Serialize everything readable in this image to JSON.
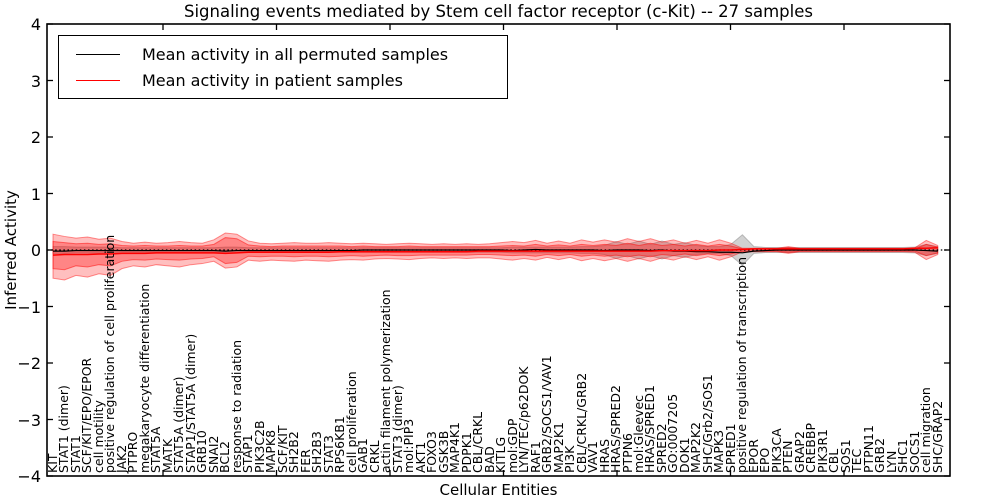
{
  "chart_data": {
    "type": "line",
    "title": "Signaling events mediated by Stem cell factor receptor (c-Kit) -- 27 samples",
    "xlabel": "Cellular Entities",
    "ylabel": "Inferred Activity",
    "ylim": [
      -4,
      4
    ],
    "yticks": [
      4,
      3,
      2,
      1,
      0,
      -1,
      -2,
      -3,
      -4
    ],
    "ytick_labels": [
      "4",
      "3",
      "2",
      "1",
      "0",
      "−1",
      "−2",
      "−3",
      "−4"
    ],
    "grid": false,
    "zero_line": 0,
    "categories": [
      "KIT",
      "STAT1 (dimer)",
      "STAT1",
      "SCF/KIT/EPO/EPOR",
      "cell motility",
      "positive regulation of cell proliferation",
      "JAK2",
      "PTPRO",
      "megakaryocyte differentiation",
      "STAT5A",
      "MATK",
      "STAT5A (dimer)",
      "STAP1/STAT5A (dimer)",
      "GRB10",
      "SNAI2",
      "BCL2",
      "response to radiation",
      "STAP1",
      "PIK3C2B",
      "MAPK8",
      "SCF/KIT",
      "SH2B2",
      "FER",
      "SH2B3",
      "STAT3",
      "RPS6KB1",
      "cell proliferation",
      "GAB1",
      "CRKL",
      "actin filament polymerization",
      "STAT3 (dimer)",
      "mol:PIP3",
      "AKT1",
      "FOXO3",
      "GSK3B",
      "MAP4K1",
      "PDPK1",
      "CBL/CRKL",
      "BAD",
      "KITLG",
      "mol:GDP",
      "LYN/TEC/p62DOK",
      "RAF1",
      "GRB2/SOCS1/VAV1",
      "MAP2K1",
      "PI3K",
      "CBL/CRKL/GRB2",
      "VAV1",
      "HRAS",
      "HRAS/SPRED2",
      "PTPN6",
      "mol:Gleevec",
      "HRAS/SPRED1",
      "SPRED2",
      "GO:0007205",
      "DOK1",
      "MAP2K2",
      "SHC/Grb2/SOS1",
      "MAPK3",
      "SPRED1",
      "positive regulation of transcription",
      "EPOR",
      "EPO",
      "PIK3CA",
      "PTEN",
      "GRAP2",
      "CREBBP",
      "PIK3R1",
      "CBL",
      "SOS1",
      "TEC",
      "PTPN11",
      "GRB2",
      "LYN",
      "SHC1",
      "SOCS1",
      "cell migration",
      "SHC/GRAP2"
    ],
    "legend": {
      "position": "upper left",
      "entries": [
        {
          "label": "Mean activity in all permuted samples",
          "color": "#000000"
        },
        {
          "label": "Mean activity in patient samples",
          "color": "#ff0000"
        }
      ]
    },
    "series": [
      {
        "name": "Mean activity in all permuted samples",
        "color": "#000000",
        "width": 1.2,
        "values": [
          -0.02,
          -0.02,
          -0.01,
          -0.01,
          -0.01,
          -0.01,
          -0.01,
          -0.01,
          -0.01,
          -0.01,
          -0.01,
          -0.01,
          -0.01,
          -0.01,
          -0.01,
          -0.02,
          -0.01,
          -0.01,
          -0.01,
          -0.01,
          -0.01,
          -0.01,
          -0.01,
          -0.01,
          -0.01,
          -0.01,
          -0.01,
          0.0,
          0.0,
          0.0,
          0.0,
          0.0,
          0.0,
          0.0,
          0.0,
          0.0,
          0.0,
          0.0,
          0.0,
          0.0,
          -0.01,
          0.0,
          0.01,
          0.0,
          0.0,
          0.0,
          0.0,
          0.0,
          -0.01,
          0.0,
          0.0,
          0.0,
          -0.01,
          0.0,
          -0.02,
          -0.02,
          -0.03,
          -0.03,
          -0.04,
          -0.04,
          -0.05,
          -0.02,
          -0.01,
          0.0,
          0.0,
          0.0,
          0.0,
          0.0,
          0.0,
          0.0,
          0.0,
          0.0,
          0.0,
          0.0,
          0.0,
          0.0,
          -0.01,
          -0.02
        ]
      },
      {
        "name": "Mean activity in patient samples",
        "color": "#ff0000",
        "width": 1.5,
        "values": [
          -0.09,
          -0.08,
          -0.08,
          -0.08,
          -0.07,
          -0.07,
          -0.06,
          -0.06,
          -0.06,
          -0.05,
          -0.05,
          -0.05,
          -0.05,
          -0.05,
          -0.05,
          -0.06,
          -0.05,
          -0.04,
          -0.04,
          -0.04,
          -0.04,
          -0.04,
          -0.04,
          -0.04,
          -0.04,
          -0.03,
          -0.03,
          -0.03,
          -0.03,
          -0.03,
          -0.03,
          -0.03,
          -0.03,
          -0.03,
          -0.03,
          -0.03,
          -0.03,
          -0.02,
          -0.02,
          -0.02,
          -0.02,
          -0.02,
          -0.02,
          -0.02,
          -0.02,
          -0.02,
          -0.02,
          -0.02,
          -0.02,
          -0.02,
          -0.02,
          -0.02,
          -0.02,
          -0.01,
          -0.01,
          -0.01,
          -0.01,
          -0.01,
          0.0,
          0.0,
          0.01,
          0.02,
          0.02,
          0.02,
          0.02,
          0.02,
          0.02,
          0.02,
          0.02,
          0.02,
          0.02,
          0.02,
          0.02,
          0.02,
          0.02,
          0.03,
          0.03,
          0.04
        ]
      }
    ],
    "bands": [
      {
        "name": "permuted-range",
        "color": "#999999",
        "opacity": 0.45,
        "top": [
          0.06,
          0.06,
          0.05,
          0.05,
          0.05,
          0.05,
          0.04,
          0.04,
          0.04,
          0.04,
          0.04,
          0.04,
          0.04,
          0.04,
          0.04,
          0.05,
          0.05,
          0.04,
          0.04,
          0.04,
          0.04,
          0.04,
          0.04,
          0.04,
          0.04,
          0.04,
          0.04,
          0.04,
          0.04,
          0.04,
          0.04,
          0.04,
          0.04,
          0.04,
          0.04,
          0.04,
          0.04,
          0.04,
          0.04,
          0.04,
          0.05,
          0.05,
          0.05,
          0.05,
          0.05,
          0.05,
          0.06,
          0.06,
          0.08,
          0.15,
          0.1,
          0.16,
          0.1,
          0.16,
          0.1,
          0.13,
          0.08,
          0.06,
          0.06,
          0.1,
          0.27,
          0.06,
          0.045,
          0.045,
          0.045,
          0.045,
          0.045,
          0.045,
          0.045,
          0.045,
          0.045,
          0.045,
          0.045,
          0.045,
          0.045,
          0.05,
          0.1,
          0.06
        ],
        "bottom": [
          -0.06,
          -0.06,
          -0.05,
          -0.05,
          -0.05,
          -0.05,
          -0.04,
          -0.04,
          -0.04,
          -0.04,
          -0.04,
          -0.04,
          -0.04,
          -0.04,
          -0.04,
          -0.05,
          -0.05,
          -0.04,
          -0.04,
          -0.04,
          -0.04,
          -0.04,
          -0.04,
          -0.04,
          -0.04,
          -0.04,
          -0.04,
          -0.04,
          -0.04,
          -0.04,
          -0.04,
          -0.04,
          -0.04,
          -0.04,
          -0.04,
          -0.04,
          -0.04,
          -0.04,
          -0.04,
          -0.04,
          -0.05,
          -0.05,
          -0.05,
          -0.05,
          -0.05,
          -0.05,
          -0.06,
          -0.06,
          -0.08,
          -0.15,
          -0.1,
          -0.16,
          -0.1,
          -0.16,
          -0.1,
          -0.13,
          -0.08,
          -0.06,
          -0.06,
          -0.1,
          -0.27,
          -0.06,
          -0.045,
          -0.045,
          -0.045,
          -0.045,
          -0.045,
          -0.045,
          -0.045,
          -0.045,
          -0.045,
          -0.045,
          -0.045,
          -0.045,
          -0.045,
          -0.05,
          -0.1,
          -0.06
        ]
      },
      {
        "name": "patient-range-outer",
        "color": "#ff0000",
        "opacity": 0.25,
        "top": [
          0.28,
          0.24,
          0.21,
          0.23,
          0.19,
          0.21,
          0.15,
          0.12,
          0.14,
          0.12,
          0.13,
          0.15,
          0.13,
          0.12,
          0.18,
          0.3,
          0.28,
          0.16,
          0.12,
          0.11,
          0.12,
          0.13,
          0.12,
          0.12,
          0.13,
          0.12,
          0.11,
          0.12,
          0.11,
          0.1,
          0.11,
          0.12,
          0.11,
          0.1,
          0.11,
          0.1,
          0.11,
          0.1,
          0.11,
          0.13,
          0.15,
          0.13,
          0.17,
          0.12,
          0.16,
          0.12,
          0.18,
          0.14,
          0.18,
          0.14,
          0.2,
          0.15,
          0.2,
          0.14,
          0.18,
          0.12,
          0.17,
          0.12,
          0.18,
          0.12,
          0.03,
          0.03,
          0.03,
          0.03,
          0.06,
          0.03,
          0.03,
          0.03,
          0.03,
          0.03,
          0.03,
          0.03,
          0.03,
          0.03,
          0.03,
          0.04,
          0.17,
          0.08
        ],
        "bottom": [
          -0.5,
          -0.53,
          -0.45,
          -0.48,
          -0.42,
          -0.45,
          -0.33,
          -0.28,
          -0.3,
          -0.26,
          -0.28,
          -0.3,
          -0.26,
          -0.24,
          -0.2,
          -0.32,
          -0.3,
          -0.18,
          -0.2,
          -0.18,
          -0.19,
          -0.2,
          -0.18,
          -0.19,
          -0.2,
          -0.18,
          -0.17,
          -0.18,
          -0.16,
          -0.15,
          -0.16,
          -0.17,
          -0.15,
          -0.14,
          -0.15,
          -0.14,
          -0.15,
          -0.14,
          -0.14,
          -0.16,
          -0.18,
          -0.15,
          -0.18,
          -0.13,
          -0.17,
          -0.13,
          -0.19,
          -0.15,
          -0.19,
          -0.15,
          -0.2,
          -0.15,
          -0.2,
          -0.14,
          -0.18,
          -0.12,
          -0.17,
          -0.12,
          -0.18,
          -0.12,
          -0.03,
          -0.03,
          -0.03,
          -0.03,
          -0.06,
          -0.03,
          -0.03,
          -0.03,
          -0.03,
          -0.03,
          -0.03,
          -0.03,
          -0.03,
          -0.03,
          -0.03,
          -0.04,
          -0.17,
          -0.08
        ]
      },
      {
        "name": "patient-range-inner",
        "color": "#ff0000",
        "opacity": 0.3,
        "top": [
          0.15,
          0.13,
          0.11,
          0.12,
          0.1,
          0.11,
          0.08,
          0.07,
          0.08,
          0.07,
          0.07,
          0.08,
          0.07,
          0.07,
          0.1,
          0.22,
          0.2,
          0.09,
          0.07,
          0.06,
          0.07,
          0.07,
          0.07,
          0.07,
          0.07,
          0.07,
          0.06,
          0.07,
          0.06,
          0.06,
          0.06,
          0.07,
          0.06,
          0.06,
          0.06,
          0.06,
          0.06,
          0.06,
          0.06,
          0.07,
          0.08,
          0.07,
          0.1,
          0.07,
          0.09,
          0.07,
          0.1,
          0.08,
          0.1,
          0.08,
          0.12,
          0.08,
          0.12,
          0.08,
          0.1,
          0.07,
          0.1,
          0.07,
          0.1,
          0.07,
          0.02,
          0.02,
          0.02,
          0.02,
          0.04,
          0.02,
          0.02,
          0.02,
          0.02,
          0.02,
          0.02,
          0.02,
          0.02,
          0.02,
          0.02,
          0.02,
          0.1,
          0.05
        ],
        "bottom": [
          -0.33,
          -0.35,
          -0.28,
          -0.3,
          -0.26,
          -0.28,
          -0.2,
          -0.17,
          -0.18,
          -0.16,
          -0.17,
          -0.18,
          -0.16,
          -0.15,
          -0.12,
          -0.24,
          -0.22,
          -0.11,
          -0.12,
          -0.11,
          -0.11,
          -0.12,
          -0.11,
          -0.11,
          -0.12,
          -0.11,
          -0.1,
          -0.11,
          -0.1,
          -0.09,
          -0.1,
          -0.1,
          -0.09,
          -0.09,
          -0.09,
          -0.09,
          -0.09,
          -0.08,
          -0.08,
          -0.09,
          -0.1,
          -0.09,
          -0.11,
          -0.08,
          -0.1,
          -0.08,
          -0.11,
          -0.09,
          -0.11,
          -0.09,
          -0.12,
          -0.09,
          -0.12,
          -0.08,
          -0.1,
          -0.07,
          -0.1,
          -0.07,
          -0.1,
          -0.07,
          -0.02,
          -0.02,
          -0.02,
          -0.02,
          -0.04,
          -0.02,
          -0.02,
          -0.02,
          -0.02,
          -0.02,
          -0.02,
          -0.02,
          -0.02,
          -0.02,
          -0.02,
          -0.02,
          -0.1,
          -0.05
        ]
      }
    ]
  }
}
